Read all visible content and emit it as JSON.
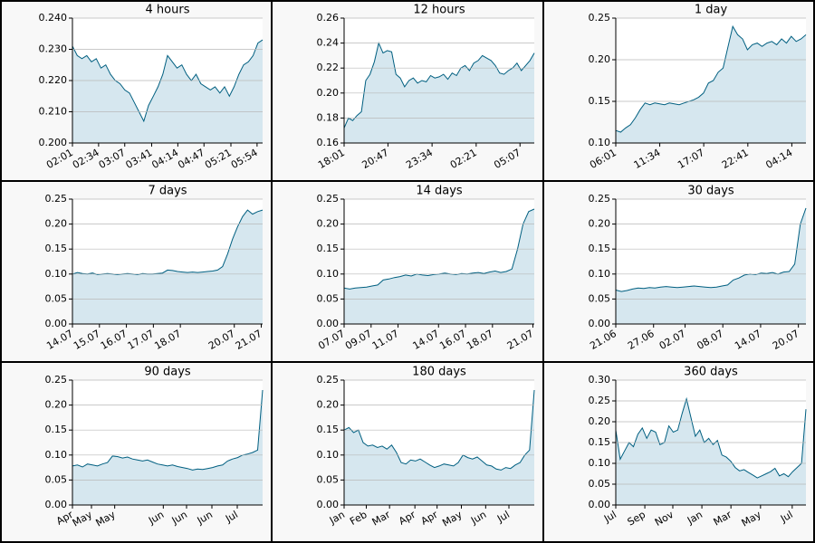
{
  "chart_data": [
    {
      "type": "area",
      "title": "4 hours",
      "color": "#005f80",
      "area_color": "#d6e7ef",
      "grid": true,
      "xlim": [
        0,
        240
      ],
      "xticks": [
        {
          "value": 0,
          "label": "02:01"
        },
        {
          "value": 33,
          "label": "02:34"
        },
        {
          "value": 66,
          "label": "03:07"
        },
        {
          "value": 100,
          "label": "03:41"
        },
        {
          "value": 133,
          "label": "04:14"
        },
        {
          "value": 166,
          "label": "04:47"
        },
        {
          "value": 200,
          "label": "05:21"
        },
        {
          "value": 233,
          "label": "05:54"
        }
      ],
      "ylim": [
        0.2,
        0.24
      ],
      "yticks": [
        {
          "value": 0.2,
          "label": "0.200"
        },
        {
          "value": 0.21,
          "label": "0.210"
        },
        {
          "value": 0.22,
          "label": "0.220"
        },
        {
          "value": 0.23,
          "label": "0.230"
        },
        {
          "value": 0.24,
          "label": "0.240"
        }
      ],
      "values": [
        0.231,
        0.228,
        0.227,
        0.228,
        0.226,
        0.227,
        0.224,
        0.225,
        0.222,
        0.22,
        0.219,
        0.217,
        0.216,
        0.213,
        0.21,
        0.207,
        0.212,
        0.215,
        0.218,
        0.222,
        0.228,
        0.226,
        0.224,
        0.225,
        0.222,
        0.22,
        0.222,
        0.219,
        0.218,
        0.217,
        0.218,
        0.216,
        0.218,
        0.215,
        0.218,
        0.222,
        0.225,
        0.226,
        0.228,
        0.232,
        0.233
      ]
    },
    {
      "type": "area",
      "title": "12 hours",
      "color": "#005f80",
      "area_color": "#d6e7ef",
      "grid": true,
      "xlim": [
        0,
        720
      ],
      "xticks": [
        {
          "value": 0,
          "label": "18:01"
        },
        {
          "value": 166,
          "label": "20:47"
        },
        {
          "value": 333,
          "label": "23:34"
        },
        {
          "value": 500,
          "label": "02:21"
        },
        {
          "value": 666,
          "label": "05:07"
        }
      ],
      "ylim": [
        0.16,
        0.26
      ],
      "yticks": [
        {
          "value": 0.16,
          "label": "0.16"
        },
        {
          "value": 0.18,
          "label": "0.18"
        },
        {
          "value": 0.2,
          "label": "0.20"
        },
        {
          "value": 0.22,
          "label": "0.22"
        },
        {
          "value": 0.24,
          "label": "0.24"
        },
        {
          "value": 0.26,
          "label": "0.26"
        }
      ],
      "values": [
        0.172,
        0.18,
        0.178,
        0.182,
        0.185,
        0.21,
        0.215,
        0.225,
        0.24,
        0.232,
        0.234,
        0.233,
        0.215,
        0.212,
        0.205,
        0.21,
        0.212,
        0.208,
        0.21,
        0.209,
        0.214,
        0.212,
        0.213,
        0.215,
        0.211,
        0.216,
        0.214,
        0.22,
        0.222,
        0.218,
        0.224,
        0.226,
        0.23,
        0.228,
        0.226,
        0.222,
        0.216,
        0.215,
        0.218,
        0.22,
        0.224,
        0.218,
        0.222,
        0.226,
        0.232
      ]
    },
    {
      "type": "area",
      "title": "1 day",
      "color": "#005f80",
      "area_color": "#d6e7ef",
      "grid": true,
      "xlim": [
        0,
        1440
      ],
      "xticks": [
        {
          "value": 0,
          "label": "06:01"
        },
        {
          "value": 333,
          "label": "11:34"
        },
        {
          "value": 666,
          "label": "17:07"
        },
        {
          "value": 1000,
          "label": "22:41"
        },
        {
          "value": 1333,
          "label": "04:14"
        }
      ],
      "ylim": [
        0.1,
        0.25
      ],
      "yticks": [
        {
          "value": 0.1,
          "label": "0.10"
        },
        {
          "value": 0.15,
          "label": "0.15"
        },
        {
          "value": 0.2,
          "label": "0.20"
        },
        {
          "value": 0.25,
          "label": "0.25"
        }
      ],
      "values": [
        0.115,
        0.113,
        0.118,
        0.122,
        0.13,
        0.14,
        0.148,
        0.146,
        0.148,
        0.147,
        0.146,
        0.148,
        0.147,
        0.146,
        0.148,
        0.15,
        0.152,
        0.155,
        0.16,
        0.172,
        0.175,
        0.185,
        0.19,
        0.215,
        0.24,
        0.23,
        0.225,
        0.212,
        0.218,
        0.22,
        0.216,
        0.22,
        0.222,
        0.218,
        0.225,
        0.22,
        0.228,
        0.222,
        0.225,
        0.23
      ]
    },
    {
      "type": "area",
      "title": "7 days",
      "color": "#005f80",
      "area_color": "#d6e7ef",
      "grid": true,
      "xlim": [
        0,
        7.05
      ],
      "xticks": [
        {
          "value": 0,
          "label": "14.07"
        },
        {
          "value": 1,
          "label": "15.07"
        },
        {
          "value": 2,
          "label": "16.07"
        },
        {
          "value": 3,
          "label": "17.07"
        },
        {
          "value": 4,
          "label": "18.07"
        },
        {
          "value": 6,
          "label": "20.07"
        },
        {
          "value": 7,
          "label": "21.07"
        }
      ],
      "ylim": [
        0,
        0.25
      ],
      "yticks": [
        {
          "value": 0,
          "label": "0.00"
        },
        {
          "value": 0.05,
          "label": "0.05"
        },
        {
          "value": 0.1,
          "label": "0.10"
        },
        {
          "value": 0.15,
          "label": "0.15"
        },
        {
          "value": 0.2,
          "label": "0.20"
        },
        {
          "value": 0.25,
          "label": "0.25"
        }
      ],
      "values": [
        0.1,
        0.103,
        0.101,
        0.1,
        0.102,
        0.099,
        0.1,
        0.101,
        0.1,
        0.099,
        0.1,
        0.101,
        0.1,
        0.099,
        0.101,
        0.1,
        0.1,
        0.101,
        0.102,
        0.108,
        0.107,
        0.105,
        0.104,
        0.103,
        0.104,
        0.103,
        0.104,
        0.105,
        0.106,
        0.108,
        0.115,
        0.14,
        0.17,
        0.195,
        0.215,
        0.228,
        0.22,
        0.225,
        0.228
      ]
    },
    {
      "type": "area",
      "title": "14 days",
      "color": "#005f80",
      "area_color": "#d6e7ef",
      "grid": true,
      "xlim": [
        0,
        14.1
      ],
      "xticks": [
        {
          "value": 0,
          "label": "07.07"
        },
        {
          "value": 2,
          "label": "09.07"
        },
        {
          "value": 4,
          "label": "11.07"
        },
        {
          "value": 7,
          "label": "14.07"
        },
        {
          "value": 9,
          "label": "16.07"
        },
        {
          "value": 11,
          "label": "18.07"
        },
        {
          "value": 14,
          "label": "21.07"
        }
      ],
      "ylim": [
        0,
        0.25
      ],
      "yticks": [
        {
          "value": 0,
          "label": "0.00"
        },
        {
          "value": 0.05,
          "label": "0.05"
        },
        {
          "value": 0.1,
          "label": "0.10"
        },
        {
          "value": 0.15,
          "label": "0.15"
        },
        {
          "value": 0.2,
          "label": "0.20"
        },
        {
          "value": 0.25,
          "label": "0.25"
        }
      ],
      "values": [
        0.072,
        0.07,
        0.072,
        0.073,
        0.074,
        0.076,
        0.078,
        0.088,
        0.09,
        0.093,
        0.095,
        0.098,
        0.096,
        0.1,
        0.098,
        0.097,
        0.099,
        0.1,
        0.102,
        0.1,
        0.099,
        0.101,
        0.1,
        0.102,
        0.103,
        0.101,
        0.104,
        0.106,
        0.103,
        0.105,
        0.11,
        0.15,
        0.2,
        0.225,
        0.23
      ]
    },
    {
      "type": "area",
      "title": "30 days",
      "color": "#005f80",
      "area_color": "#d6e7ef",
      "grid": true,
      "xlim": [
        0,
        30.2
      ],
      "xticks": [
        {
          "value": 0,
          "label": "21.06"
        },
        {
          "value": 6,
          "label": "27.06"
        },
        {
          "value": 11,
          "label": "02.07"
        },
        {
          "value": 17,
          "label": "08.07"
        },
        {
          "value": 23,
          "label": "14.07"
        },
        {
          "value": 29,
          "label": "20.07"
        }
      ],
      "ylim": [
        0,
        0.25
      ],
      "yticks": [
        {
          "value": 0,
          "label": "0.00"
        },
        {
          "value": 0.05,
          "label": "0.05"
        },
        {
          "value": 0.1,
          "label": "0.10"
        },
        {
          "value": 0.15,
          "label": "0.15"
        },
        {
          "value": 0.2,
          "label": "0.20"
        },
        {
          "value": 0.25,
          "label": "0.25"
        }
      ],
      "values": [
        0.068,
        0.065,
        0.067,
        0.07,
        0.072,
        0.071,
        0.073,
        0.072,
        0.074,
        0.075,
        0.074,
        0.073,
        0.074,
        0.075,
        0.076,
        0.075,
        0.074,
        0.073,
        0.074,
        0.076,
        0.078,
        0.088,
        0.092,
        0.098,
        0.1,
        0.099,
        0.102,
        0.101,
        0.103,
        0.1,
        0.104,
        0.105,
        0.12,
        0.2,
        0.232
      ]
    },
    {
      "type": "area",
      "title": "90 days",
      "color": "#005f80",
      "area_color": "#d6e7ef",
      "grid": true,
      "xlim": [
        0,
        90
      ],
      "xticks": [
        {
          "value": 0,
          "label": "Apr"
        },
        {
          "value": 9,
          "label": "May"
        },
        {
          "value": 20,
          "label": "May"
        },
        {
          "value": 43,
          "label": "Jun"
        },
        {
          "value": 54,
          "label": "Jun"
        },
        {
          "value": 66,
          "label": "Jun"
        },
        {
          "value": 78,
          "label": "Jul"
        }
      ],
      "ylim": [
        0,
        0.25
      ],
      "yticks": [
        {
          "value": 0,
          "label": "0.00"
        },
        {
          "value": 0.05,
          "label": "0.05"
        },
        {
          "value": 0.1,
          "label": "0.10"
        },
        {
          "value": 0.15,
          "label": "0.15"
        },
        {
          "value": 0.2,
          "label": "0.20"
        },
        {
          "value": 0.25,
          "label": "0.25"
        }
      ],
      "values": [
        0.078,
        0.08,
        0.076,
        0.082,
        0.08,
        0.078,
        0.082,
        0.085,
        0.098,
        0.097,
        0.094,
        0.096,
        0.092,
        0.09,
        0.088,
        0.09,
        0.086,
        0.082,
        0.08,
        0.078,
        0.08,
        0.077,
        0.075,
        0.073,
        0.07,
        0.072,
        0.071,
        0.073,
        0.075,
        0.078,
        0.08,
        0.088,
        0.092,
        0.095,
        0.1,
        0.102,
        0.105,
        0.11,
        0.23
      ]
    },
    {
      "type": "area",
      "title": "180 days",
      "color": "#005f80",
      "area_color": "#d6e7ef",
      "grid": true,
      "xlim": [
        0,
        180
      ],
      "xticks": [
        {
          "value": 0,
          "label": "Jan"
        },
        {
          "value": 21,
          "label": "Feb"
        },
        {
          "value": 43,
          "label": "Mar"
        },
        {
          "value": 67,
          "label": "Apr"
        },
        {
          "value": 88,
          "label": "Apr"
        },
        {
          "value": 111,
          "label": "May"
        },
        {
          "value": 134,
          "label": "Jun"
        },
        {
          "value": 156,
          "label": "Jul"
        }
      ],
      "ylim": [
        0,
        0.25
      ],
      "yticks": [
        {
          "value": 0,
          "label": "0.00"
        },
        {
          "value": 0.05,
          "label": "0.05"
        },
        {
          "value": 0.1,
          "label": "0.10"
        },
        {
          "value": 0.15,
          "label": "0.15"
        },
        {
          "value": 0.2,
          "label": "0.20"
        },
        {
          "value": 0.25,
          "label": "0.25"
        }
      ],
      "values": [
        0.15,
        0.155,
        0.145,
        0.15,
        0.125,
        0.118,
        0.12,
        0.115,
        0.118,
        0.112,
        0.12,
        0.105,
        0.085,
        0.082,
        0.09,
        0.088,
        0.092,
        0.086,
        0.08,
        0.075,
        0.078,
        0.082,
        0.08,
        0.078,
        0.085,
        0.1,
        0.095,
        0.092,
        0.096,
        0.088,
        0.08,
        0.078,
        0.072,
        0.07,
        0.075,
        0.073,
        0.08,
        0.085,
        0.1,
        0.11,
        0.23
      ]
    },
    {
      "type": "area",
      "title": "360 days",
      "color": "#005f80",
      "area_color": "#d6e7ef",
      "grid": true,
      "xlim": [
        0,
        360
      ],
      "xticks": [
        {
          "value": 0,
          "label": "Jul"
        },
        {
          "value": 55,
          "label": "Sep"
        },
        {
          "value": 108,
          "label": "Nov"
        },
        {
          "value": 163,
          "label": "Jan"
        },
        {
          "value": 218,
          "label": "Mar"
        },
        {
          "value": 274,
          "label": "May"
        },
        {
          "value": 334,
          "label": "Jul"
        }
      ],
      "ylim": [
        0,
        0.3
      ],
      "yticks": [
        {
          "value": 0,
          "label": "0.00"
        },
        {
          "value": 0.05,
          "label": "0.05"
        },
        {
          "value": 0.1,
          "label": "0.10"
        },
        {
          "value": 0.15,
          "label": "0.15"
        },
        {
          "value": 0.2,
          "label": "0.20"
        },
        {
          "value": 0.25,
          "label": "0.25"
        },
        {
          "value": 0.3,
          "label": "0.30"
        }
      ],
      "values": [
        0.18,
        0.11,
        0.13,
        0.15,
        0.14,
        0.17,
        0.185,
        0.16,
        0.18,
        0.175,
        0.145,
        0.15,
        0.19,
        0.175,
        0.18,
        0.22,
        0.255,
        0.21,
        0.165,
        0.18,
        0.15,
        0.16,
        0.145,
        0.155,
        0.12,
        0.115,
        0.105,
        0.09,
        0.082,
        0.085,
        0.078,
        0.072,
        0.065,
        0.07,
        0.075,
        0.08,
        0.088,
        0.07,
        0.075,
        0.068,
        0.08,
        0.09,
        0.1,
        0.23
      ]
    }
  ]
}
